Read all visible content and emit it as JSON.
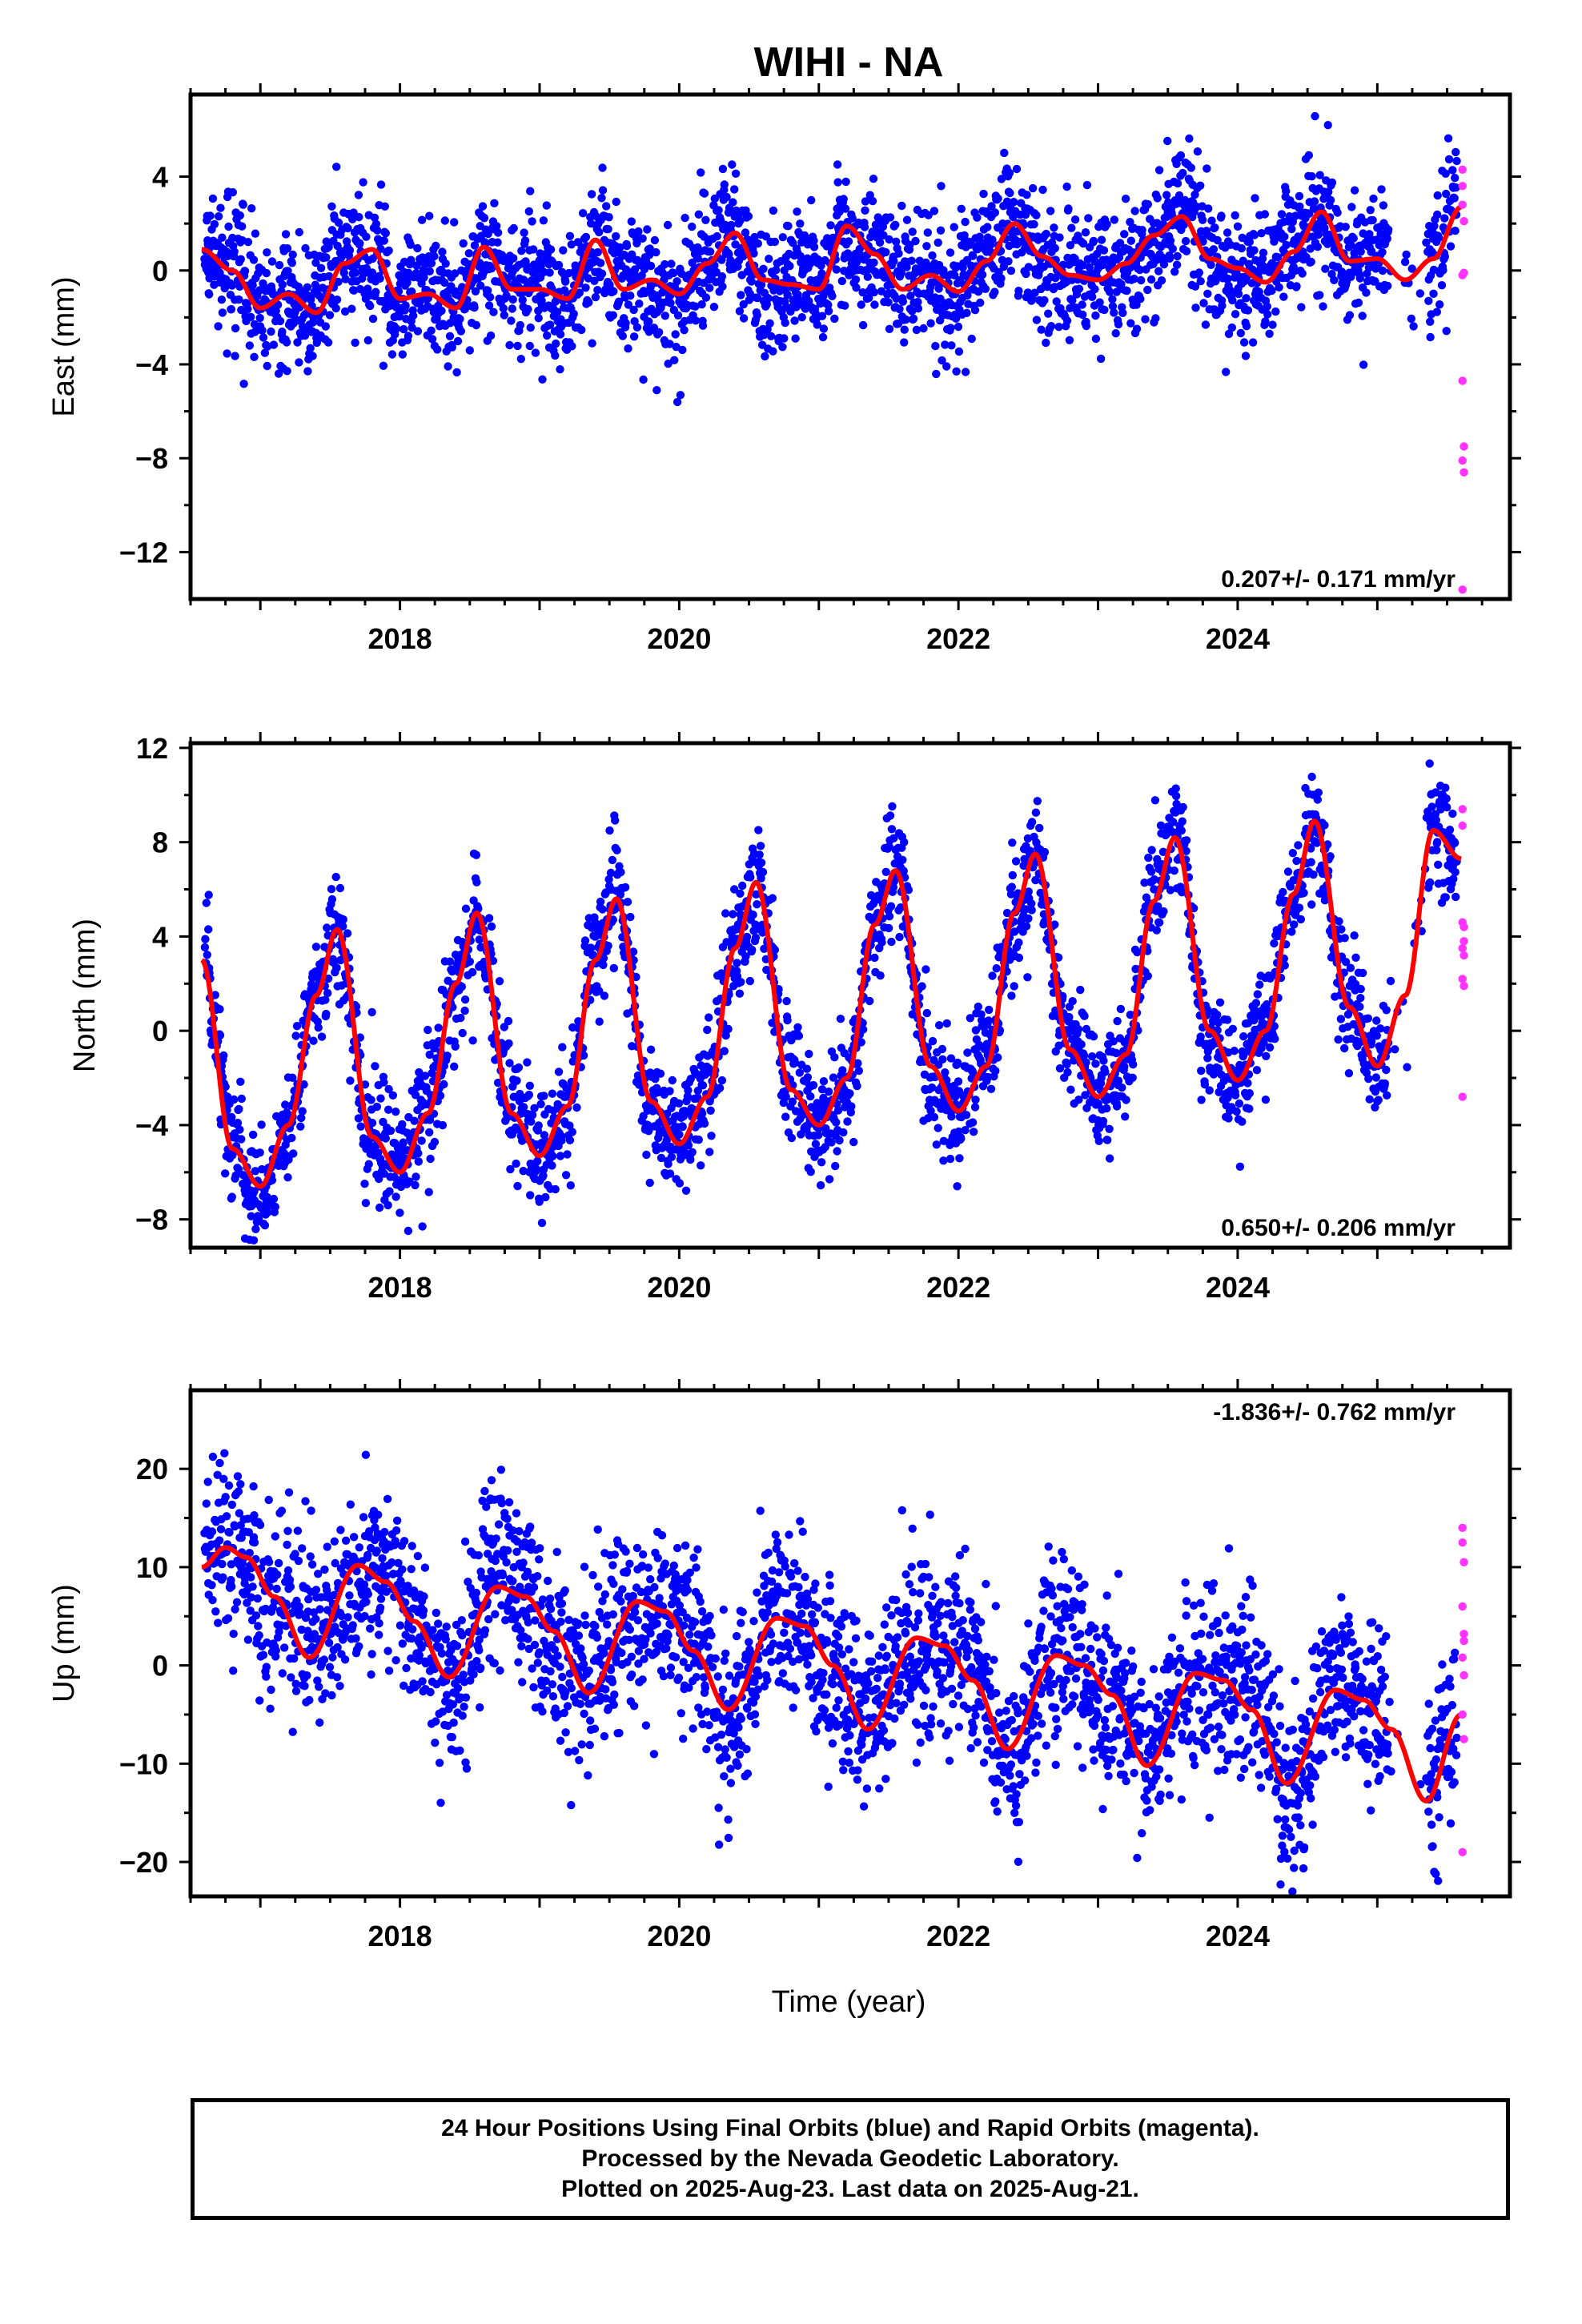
{
  "title": "WIHI - NA",
  "xlabel": "Time (year)",
  "footer": {
    "line1": "24 Hour Positions Using Final Orbits (blue) and Rapid Orbits (magenta).",
    "line2": "Processed by the Nevada Geodetic Laboratory.",
    "line3": "Plotted on 2025-Aug-23. Last data on 2025-Aug-21."
  },
  "colors": {
    "final": "#0000ff",
    "rapid": "#ff33ff",
    "model": "#ff0000",
    "axes": "#000000"
  },
  "chart_data": [
    {
      "type": "scatter",
      "ylabel": "East (mm)",
      "rate": "0.207+/- 0.171 mm/yr",
      "xlim": [
        2016.5,
        2025.95
      ],
      "ylim": [
        -14,
        7.5
      ],
      "xticks": [
        2018,
        2020,
        2022,
        2024
      ],
      "xtick_labels": [
        "2018",
        "2020",
        "2022",
        "2024"
      ],
      "yticks": [
        4,
        0,
        -4,
        -8,
        -12
      ],
      "ytick_labels": [
        "4",
        "0",
        "−4",
        "−8",
        "−12"
      ],
      "model": {
        "name": "fit",
        "x": [
          2016.58,
          2016.8,
          2017.0,
          2017.2,
          2017.4,
          2017.6,
          2017.8,
          2018.0,
          2018.2,
          2018.4,
          2018.6,
          2018.8,
          2019.0,
          2019.2,
          2019.4,
          2019.6,
          2019.8,
          2020.0,
          2020.2,
          2020.4,
          2020.6,
          2020.8,
          2021.0,
          2021.2,
          2021.4,
          2021.6,
          2021.8,
          2022.0,
          2022.2,
          2022.4,
          2022.6,
          2022.8,
          2023.0,
          2023.2,
          2023.4,
          2023.6,
          2023.8,
          2024.0,
          2024.2,
          2024.4,
          2024.6,
          2024.8,
          2025.0,
          2025.2,
          2025.4,
          2025.6
        ],
        "y": [
          0.9,
          0.0,
          -1.6,
          -1.0,
          -1.8,
          0.3,
          0.9,
          -1.2,
          -1.0,
          -1.6,
          1.0,
          -0.8,
          -0.8,
          -1.2,
          1.3,
          -0.8,
          -0.4,
          -1.0,
          0.3,
          1.6,
          -0.4,
          -0.6,
          -0.8,
          1.9,
          0.7,
          -0.8,
          -0.2,
          -0.9,
          0.4,
          2.0,
          0.6,
          -0.2,
          -0.4,
          0.3,
          1.5,
          2.3,
          0.5,
          0.1,
          -0.5,
          0.8,
          2.5,
          0.4,
          0.5,
          -0.4,
          0.5,
          2.7
        ]
      },
      "rapid": {
        "x": [
          2025.61,
          2025.61,
          2025.61,
          2025.62,
          2025.61,
          2025.61,
          2025.62,
          2025.61,
          2025.62,
          2025.61,
          2025.62
        ],
        "y": [
          4.3,
          3.6,
          2.8,
          2.1,
          -0.2,
          -4.7,
          -7.5,
          -8.1,
          -8.6,
          -13.6,
          -0.1
        ]
      }
    },
    {
      "type": "scatter",
      "ylabel": "North (mm)",
      "rate": "0.650+/- 0.206 mm/yr",
      "xlim": [
        2016.5,
        2025.95
      ],
      "ylim": [
        -9.2,
        12.2
      ],
      "xticks": [
        2018,
        2020,
        2022,
        2024
      ],
      "xtick_labels": [
        "2018",
        "2020",
        "2022",
        "2024"
      ],
      "yticks": [
        12,
        8,
        4,
        0,
        -4,
        -8
      ],
      "ytick_labels": [
        "12",
        "8",
        "4",
        "0",
        "−4",
        "−8"
      ],
      "model": {
        "name": "fit",
        "x": [
          2016.58,
          2016.8,
          2017.0,
          2017.2,
          2017.4,
          2017.55,
          2017.8,
          2018.0,
          2018.2,
          2018.4,
          2018.55,
          2018.8,
          2019.0,
          2019.2,
          2019.4,
          2019.55,
          2019.8,
          2020.0,
          2020.2,
          2020.4,
          2020.55,
          2020.8,
          2021.0,
          2021.2,
          2021.4,
          2021.55,
          2021.8,
          2022.0,
          2022.2,
          2022.4,
          2022.55,
          2022.8,
          2023.0,
          2023.2,
          2023.4,
          2023.55,
          2023.8,
          2024.0,
          2024.2,
          2024.4,
          2024.55,
          2024.8,
          2025.0,
          2025.2,
          2025.4,
          2025.6
        ],
        "y": [
          3.0,
          -5.0,
          -6.6,
          -4.0,
          1.5,
          4.3,
          -4.5,
          -6.0,
          -3.5,
          2.0,
          5.0,
          -3.5,
          -5.3,
          -3.2,
          3.0,
          5.6,
          -3.0,
          -4.8,
          -2.8,
          3.5,
          6.3,
          -2.5,
          -4.0,
          -2.0,
          4.5,
          6.8,
          -1.5,
          -3.4,
          -1.5,
          5.0,
          7.5,
          -0.8,
          -2.8,
          -1.0,
          5.5,
          8.2,
          0.0,
          -2.1,
          0.0,
          5.8,
          8.9,
          1.0,
          -1.5,
          1.5,
          8.5,
          7.3
        ]
      },
      "rapid": {
        "x": [
          2025.61,
          2025.61,
          2025.61,
          2025.62,
          2025.61,
          2025.62,
          2025.61,
          2025.62,
          2025.61,
          2025.62
        ],
        "y": [
          9.4,
          8.7,
          4.6,
          4.4,
          3.5,
          3.2,
          2.2,
          1.9,
          -2.8,
          3.8
        ]
      }
    },
    {
      "type": "scatter",
      "ylabel": "Up (mm)",
      "rate": "-1.836+/- 0.762 mm/yr",
      "xlim": [
        2016.5,
        2025.95
      ],
      "ylim": [
        -23.5,
        28
      ],
      "xticks": [
        2018,
        2020,
        2022,
        2024
      ],
      "xtick_labels": [
        "2018",
        "2020",
        "2022",
        "2024"
      ],
      "yticks": [
        20,
        10,
        0,
        -10,
        -20
      ],
      "ytick_labels": [
        "20",
        "10",
        "0",
        "−10",
        "−20"
      ],
      "model": {
        "name": "fit",
        "x": [
          2016.58,
          2016.75,
          2016.9,
          2017.1,
          2017.35,
          2017.7,
          2017.9,
          2018.1,
          2018.35,
          2018.7,
          2018.9,
          2019.1,
          2019.35,
          2019.7,
          2019.9,
          2020.1,
          2020.35,
          2020.7,
          2020.9,
          2021.1,
          2021.35,
          2021.7,
          2021.9,
          2022.1,
          2022.35,
          2022.7,
          2022.9,
          2023.1,
          2023.35,
          2023.7,
          2023.9,
          2024.1,
          2024.35,
          2024.7,
          2024.9,
          2025.1,
          2025.35,
          2025.6
        ],
        "y": [
          10.0,
          12.0,
          11.0,
          7.0,
          0.8,
          10.2,
          8.5,
          4.5,
          -1.2,
          8.0,
          7.0,
          3.5,
          -2.8,
          6.5,
          5.5,
          1.5,
          -4.5,
          4.8,
          4.0,
          0.0,
          -6.5,
          2.8,
          2.0,
          -1.5,
          -8.5,
          1.0,
          0.0,
          -3.0,
          -10.2,
          -0.8,
          -1.5,
          -4.5,
          -12.0,
          -2.5,
          -3.5,
          -6.5,
          -13.8,
          -5.0
        ]
      },
      "rapid": {
        "x": [
          2025.61,
          2025.61,
          2025.62,
          2025.61,
          2025.62,
          2025.61,
          2025.62,
          2025.61,
          2025.62,
          2025.61,
          2025.62
        ],
        "y": [
          14.0,
          12.5,
          10.5,
          6.0,
          3.2,
          0.8,
          -1.0,
          -5.0,
          -7.5,
          -19.0,
          2.5
        ]
      }
    }
  ]
}
